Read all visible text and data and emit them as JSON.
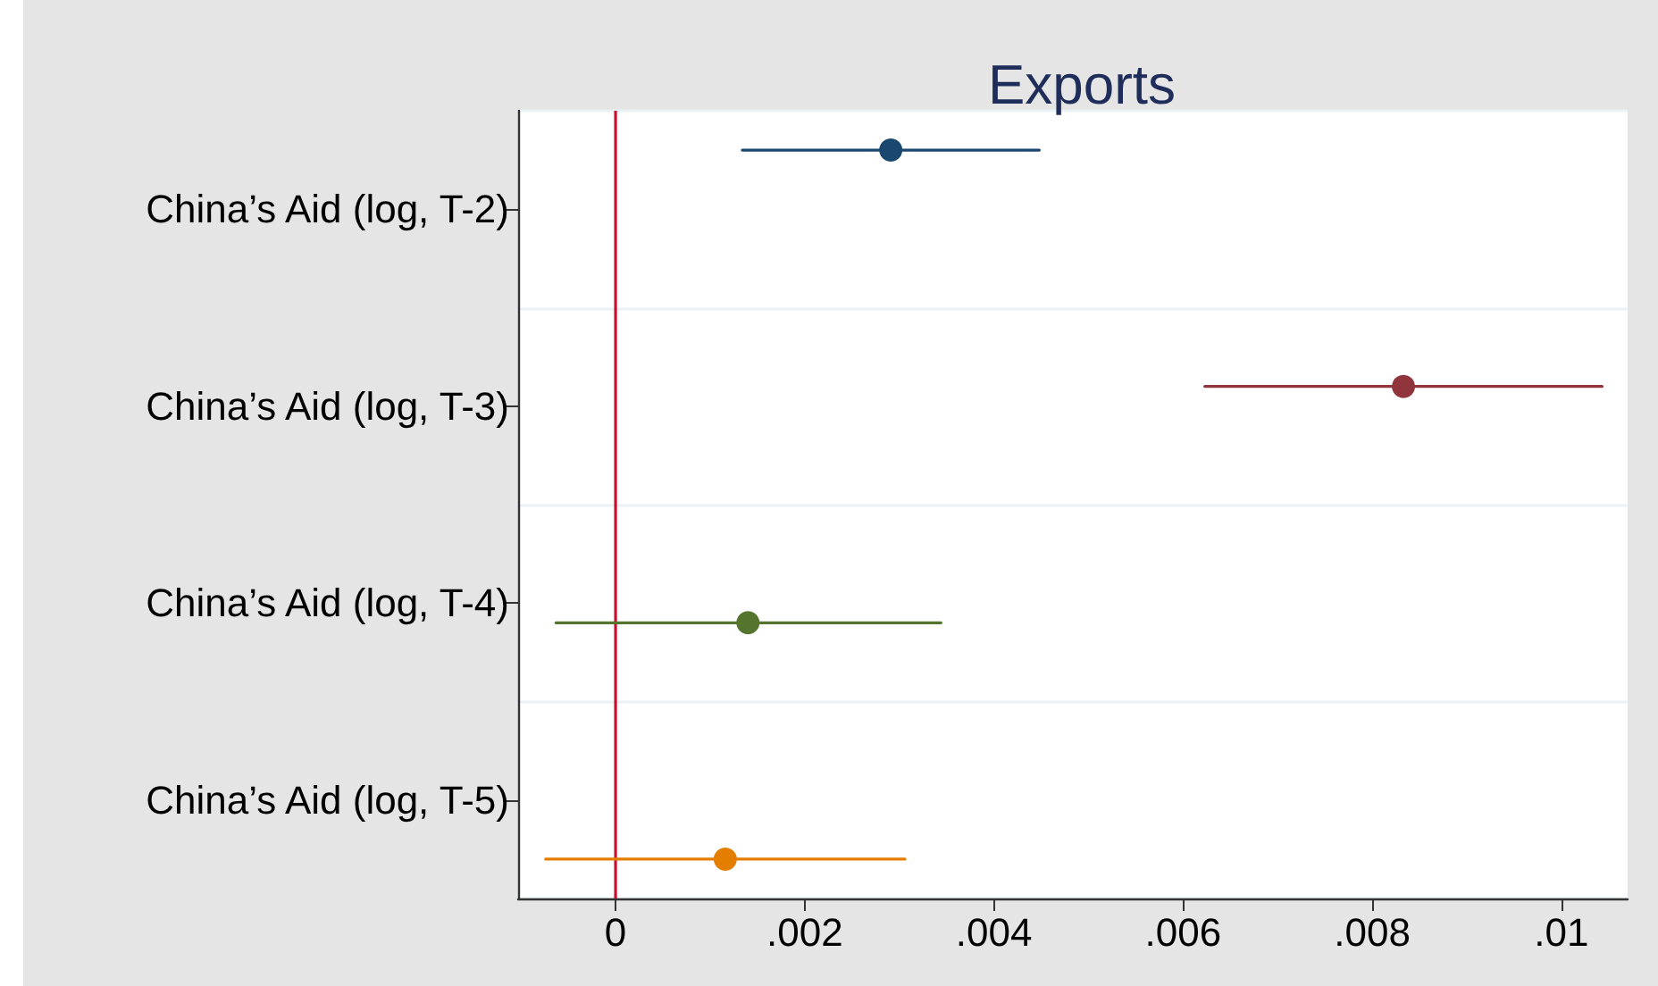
{
  "chart_data": {
    "type": "scatter",
    "orientation": "horizontal",
    "title": "Exports",
    "categories": [
      "China’s Aid (log, T-2)",
      "China’s Aid (log, T-3)",
      "China’s Aid (log, T-4)",
      "China’s Aid (log, T-5)"
    ],
    "series": [
      {
        "color": "#1a476f",
        "values": [
          0.00291,
          null,
          null,
          null
        ],
        "errors": [
          [
            0.00134,
            0.00448
          ],
          null,
          null,
          null
        ]
      },
      {
        "color": "#90353b",
        "values": [
          null,
          0.00833,
          null,
          null
        ],
        "errors": [
          null,
          [
            0.00623,
            0.01043
          ],
          null,
          null
        ]
      },
      {
        "color": "#55752f",
        "values": [
          null,
          null,
          0.0014,
          null
        ],
        "errors": [
          null,
          null,
          [
            -0.00063,
            0.00344
          ],
          null
        ]
      },
      {
        "color": "#e37e00",
        "values": [
          null,
          null,
          null,
          0.00116
        ],
        "errors": [
          null,
          null,
          null,
          [
            -0.00074,
            0.00306
          ]
        ]
      }
    ],
    "xlim": [
      -0.00103,
      0.0107
    ],
    "xticks": [
      0,
      {
        "value": 0.002,
        "label": ".002"
      },
      {
        "value": 0.004,
        "label": ".004"
      },
      {
        "value": 0.006,
        "label": ".006"
      },
      {
        "value": 0.008,
        "label": ".008"
      },
      {
        "value": 0.01,
        "label": ".01"
      }
    ],
    "ref_lines": [
      {
        "axis": "x",
        "value": 0,
        "color": "#c8102e"
      }
    ],
    "grid": "y",
    "marker": "circle"
  }
}
